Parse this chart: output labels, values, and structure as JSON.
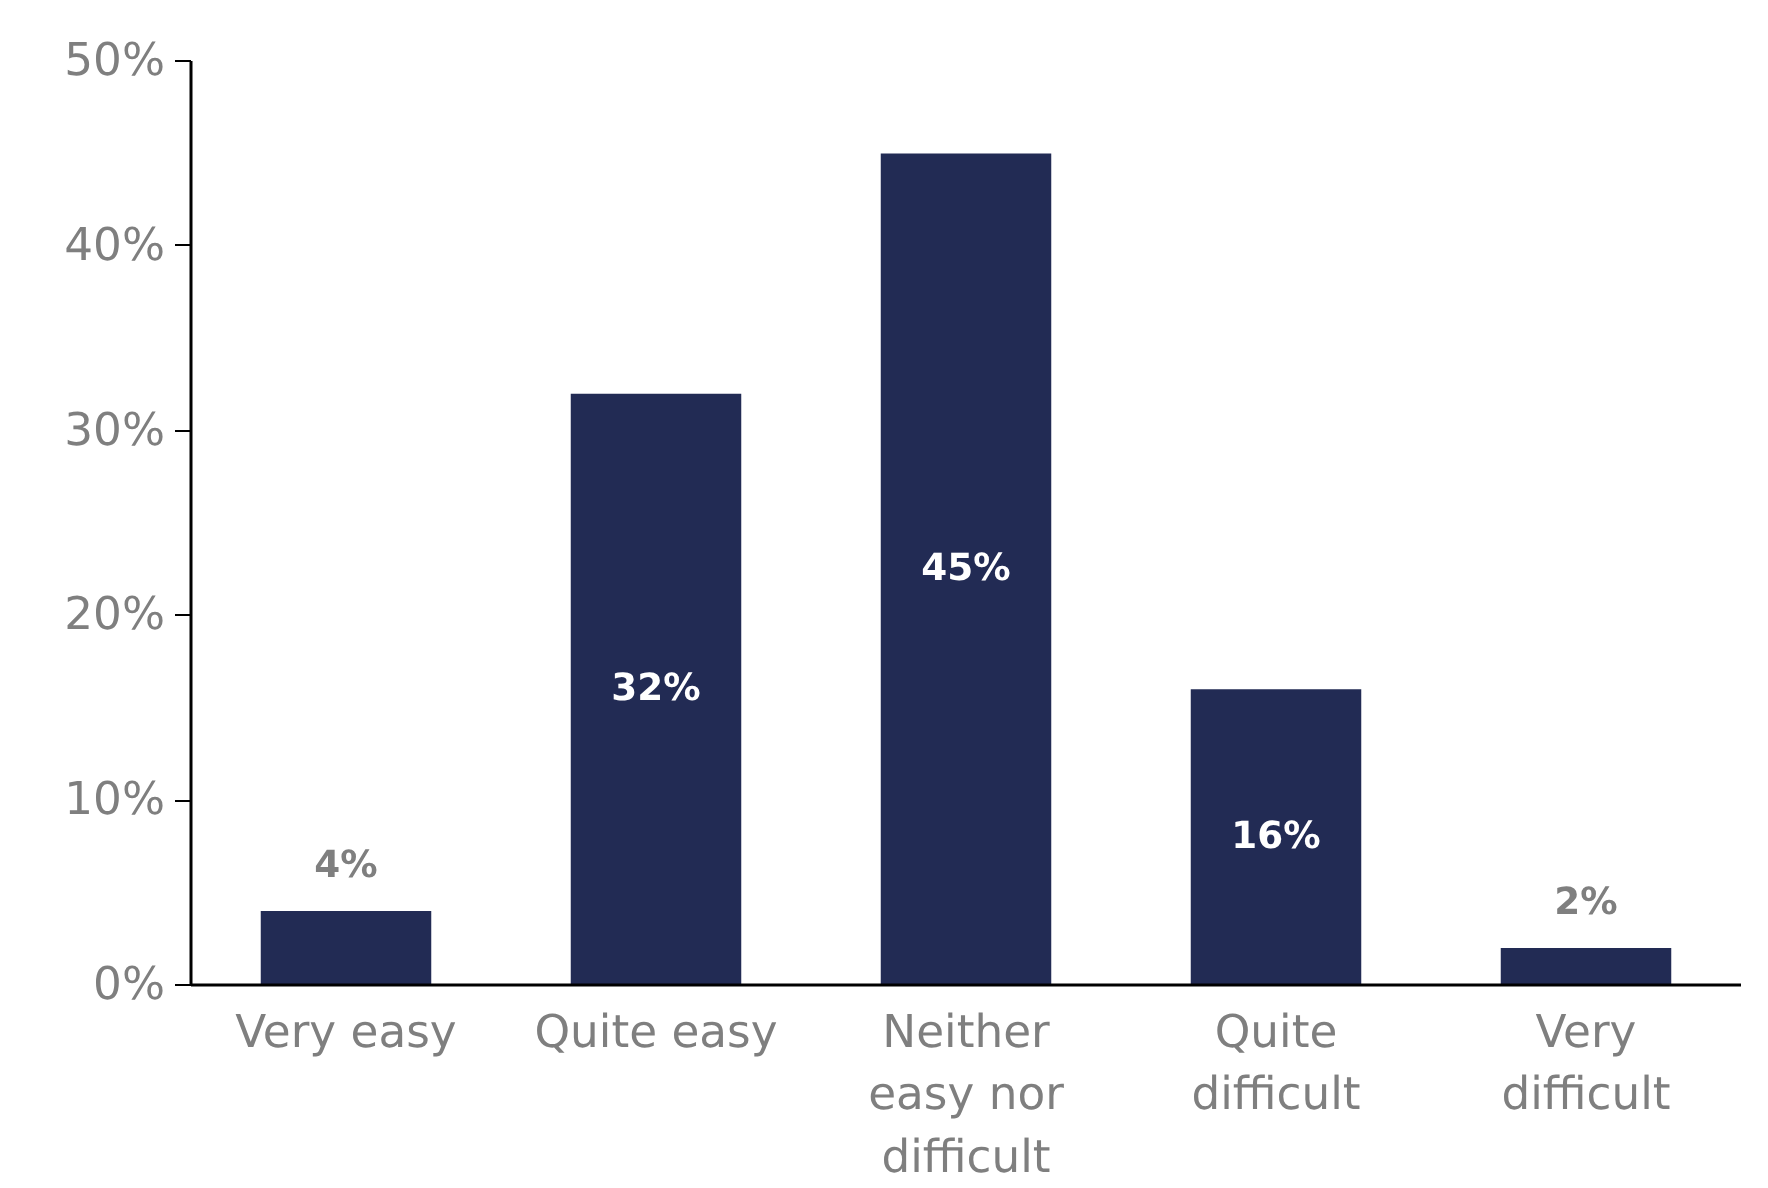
{
  "chart_data": {
    "type": "bar",
    "categories": [
      "Very easy",
      "Quite easy",
      "Neither easy nor difficult",
      "Quite difficult",
      "Very difficult"
    ],
    "values": [
      4,
      32,
      45,
      16,
      2
    ],
    "value_labels": [
      "4%",
      "32%",
      "45%",
      "16%",
      "2%"
    ],
    "color": "#222b54",
    "ylim": [
      0,
      50
    ],
    "yticks": [
      {
        "value": 0,
        "label": "0%"
      },
      {
        "value": 10,
        "label": "10%"
      },
      {
        "value": 20,
        "label": "20%"
      },
      {
        "value": 30,
        "label": "30%"
      },
      {
        "value": 40,
        "label": "40%"
      },
      {
        "value": 50,
        "label": "50%"
      }
    ],
    "grid": false
  }
}
